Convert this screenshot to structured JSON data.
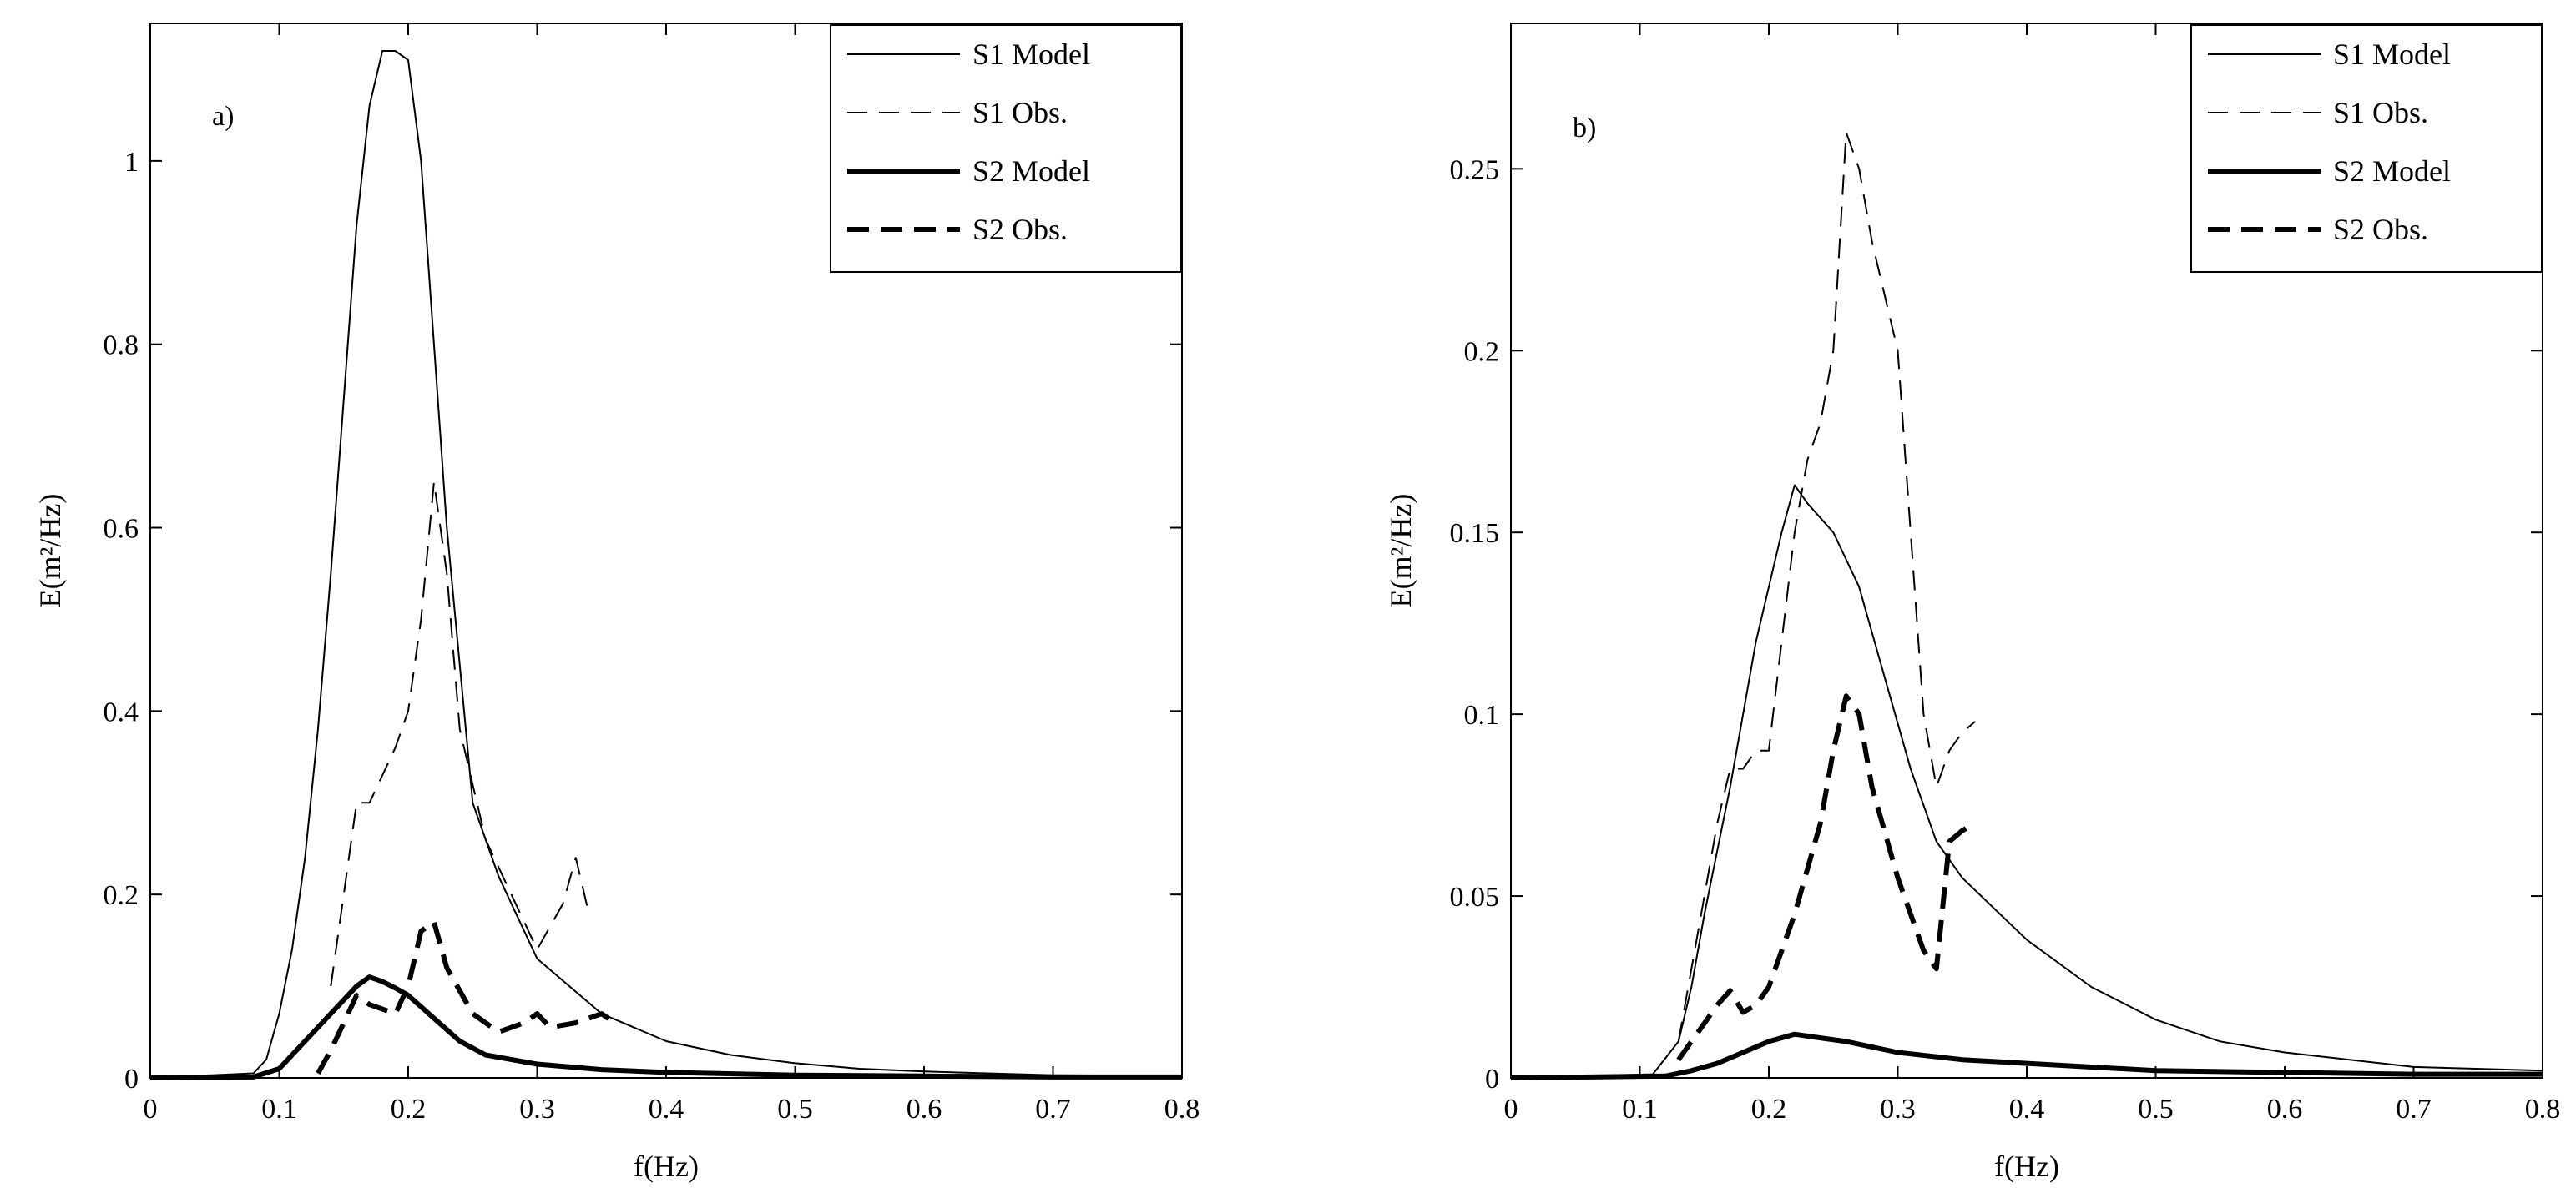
{
  "chart_data": [
    {
      "type": "line",
      "panel_label": "a)",
      "xlabel": "f(Hz)",
      "ylabel": "E(m²/Hz)",
      "xlim": [
        0,
        0.8
      ],
      "ylim": [
        0,
        1.15
      ],
      "xticks": [
        0,
        0.1,
        0.2,
        0.3,
        0.4,
        0.5,
        0.6,
        0.7,
        0.8
      ],
      "xtick_labels": [
        "0",
        "0.1",
        "0.2",
        "0.3",
        "0.4",
        "0.5",
        "0.6",
        "0.7",
        "0.8"
      ],
      "yticks": [
        0,
        0.2,
        0.4,
        0.6,
        0.8,
        1.0
      ],
      "ytick_labels": [
        "0",
        "0.2",
        "0.4",
        "0.6",
        "0.8",
        "1"
      ],
      "grid": false,
      "legend_position": "top-right",
      "series": [
        {
          "name": "S1 Model",
          "style": "thin-solid",
          "x": [
            0,
            0.08,
            0.09,
            0.1,
            0.11,
            0.12,
            0.13,
            0.14,
            0.15,
            0.16,
            0.17,
            0.18,
            0.19,
            0.2,
            0.21,
            0.22,
            0.23,
            0.24,
            0.25,
            0.27,
            0.3,
            0.35,
            0.4,
            0.45,
            0.5,
            0.55,
            0.6,
            0.7,
            0.8
          ],
          "y": [
            0,
            0.005,
            0.02,
            0.07,
            0.14,
            0.24,
            0.38,
            0.55,
            0.74,
            0.93,
            1.06,
            1.12,
            1.12,
            1.11,
            1.0,
            0.8,
            0.6,
            0.45,
            0.3,
            0.22,
            0.13,
            0.07,
            0.04,
            0.025,
            0.016,
            0.01,
            0.007,
            0.003,
            0.002
          ]
        },
        {
          "name": "S1 Obs.",
          "style": "thin-dashed",
          "x": [
            0.14,
            0.15,
            0.16,
            0.17,
            0.19,
            0.2,
            0.21,
            0.22,
            0.23,
            0.24,
            0.26,
            0.28,
            0.3,
            0.32,
            0.33,
            0.34
          ],
          "y": [
            0.1,
            0.2,
            0.3,
            0.3,
            0.36,
            0.4,
            0.5,
            0.65,
            0.55,
            0.38,
            0.26,
            0.2,
            0.14,
            0.19,
            0.24,
            0.18
          ]
        },
        {
          "name": "S2 Model",
          "style": "thick-solid",
          "x": [
            0,
            0.08,
            0.1,
            0.12,
            0.14,
            0.15,
            0.16,
            0.17,
            0.18,
            0.19,
            0.2,
            0.22,
            0.24,
            0.26,
            0.3,
            0.35,
            0.4,
            0.5,
            0.6,
            0.7,
            0.8
          ],
          "y": [
            0,
            0.001,
            0.01,
            0.04,
            0.07,
            0.085,
            0.1,
            0.11,
            0.105,
            0.098,
            0.09,
            0.065,
            0.04,
            0.025,
            0.015,
            0.009,
            0.006,
            0.003,
            0.002,
            0.001,
            0.001
          ]
        },
        {
          "name": "S2 Obs.",
          "style": "thick-dashed",
          "x": [
            0.13,
            0.14,
            0.15,
            0.16,
            0.17,
            0.19,
            0.2,
            0.21,
            0.22,
            0.23,
            0.25,
            0.27,
            0.29,
            0.3,
            0.31,
            0.33,
            0.34,
            0.35,
            0.36
          ],
          "y": [
            0.005,
            0.03,
            0.06,
            0.09,
            0.08,
            0.07,
            0.1,
            0.16,
            0.17,
            0.12,
            0.07,
            0.05,
            0.06,
            0.07,
            0.055,
            0.06,
            0.065,
            0.07,
            0.06
          ]
        }
      ]
    },
    {
      "type": "line",
      "panel_label": "b)",
      "xlabel": "f(Hz)",
      "ylabel": "E(m²/Hz)",
      "xlim": [
        0,
        0.8
      ],
      "ylim": [
        0,
        0.29
      ],
      "xticks": [
        0,
        0.1,
        0.2,
        0.3,
        0.4,
        0.5,
        0.6,
        0.7,
        0.8
      ],
      "xtick_labels": [
        "0",
        "0.1",
        "0.2",
        "0.3",
        "0.4",
        "0.5",
        "0.6",
        "0.7",
        "0.8"
      ],
      "yticks": [
        0,
        0.05,
        0.1,
        0.15,
        0.2,
        0.25
      ],
      "ytick_labels": [
        "0",
        "0.05",
        "0.1",
        "0.15",
        "0.2",
        "0.25"
      ],
      "grid": false,
      "legend_position": "top-right",
      "series": [
        {
          "name": "S1 Model",
          "style": "thin-solid",
          "x": [
            0,
            0.11,
            0.13,
            0.14,
            0.15,
            0.17,
            0.19,
            0.21,
            0.22,
            0.23,
            0.25,
            0.27,
            0.29,
            0.31,
            0.33,
            0.35,
            0.4,
            0.45,
            0.5,
            0.55,
            0.6,
            0.7,
            0.8
          ],
          "y": [
            0,
            0.001,
            0.01,
            0.025,
            0.045,
            0.08,
            0.12,
            0.15,
            0.163,
            0.158,
            0.15,
            0.135,
            0.11,
            0.085,
            0.065,
            0.055,
            0.038,
            0.025,
            0.016,
            0.01,
            0.007,
            0.003,
            0.002
          ]
        },
        {
          "name": "S1 Obs.",
          "style": "thin-dashed",
          "x": [
            0.13,
            0.14,
            0.15,
            0.16,
            0.17,
            0.18,
            0.19,
            0.2,
            0.21,
            0.22,
            0.23,
            0.24,
            0.25,
            0.26,
            0.27,
            0.28,
            0.3,
            0.31,
            0.32,
            0.33,
            0.34,
            0.35,
            0.36
          ],
          "y": [
            0.01,
            0.03,
            0.05,
            0.07,
            0.085,
            0.085,
            0.09,
            0.09,
            0.12,
            0.15,
            0.17,
            0.18,
            0.2,
            0.26,
            0.25,
            0.23,
            0.2,
            0.15,
            0.1,
            0.08,
            0.09,
            0.095,
            0.098
          ]
        },
        {
          "name": "S2 Model",
          "style": "thick-solid",
          "x": [
            0,
            0.12,
            0.14,
            0.16,
            0.18,
            0.2,
            0.22,
            0.24,
            0.26,
            0.3,
            0.35,
            0.4,
            0.5,
            0.6,
            0.7,
            0.8
          ],
          "y": [
            0,
            0.0005,
            0.002,
            0.004,
            0.007,
            0.01,
            0.012,
            0.011,
            0.01,
            0.007,
            0.005,
            0.004,
            0.002,
            0.0015,
            0.001,
            0.001
          ]
        },
        {
          "name": "S2 Obs.",
          "style": "thick-dashed",
          "x": [
            0.13,
            0.14,
            0.15,
            0.16,
            0.17,
            0.18,
            0.19,
            0.2,
            0.22,
            0.24,
            0.25,
            0.26,
            0.27,
            0.28,
            0.3,
            0.32,
            0.33,
            0.34,
            0.35,
            0.36
          ],
          "y": [
            0.005,
            0.01,
            0.015,
            0.02,
            0.024,
            0.018,
            0.02,
            0.025,
            0.045,
            0.07,
            0.09,
            0.105,
            0.1,
            0.08,
            0.055,
            0.035,
            0.03,
            0.065,
            0.068,
            0.07
          ]
        }
      ]
    }
  ]
}
